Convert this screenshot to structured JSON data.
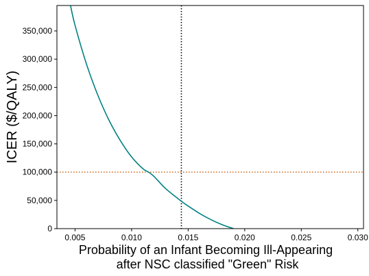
{
  "chart_data": {
    "type": "line",
    "title": "",
    "xlabel_lines": [
      "Probability of an Infant Becoming Ill-Appearing",
      "after NSC classified \"Green\" Risk"
    ],
    "ylabel": "ICER ($/QALY)",
    "xlim": [
      0.0034,
      0.0305
    ],
    "ylim": [
      0,
      395000
    ],
    "x_ticks": [
      {
        "value": 0.005,
        "label": "0.005"
      },
      {
        "value": 0.01,
        "label": "0.010"
      },
      {
        "value": 0.015,
        "label": "0.015"
      },
      {
        "value": 0.02,
        "label": "0.020"
      },
      {
        "value": 0.025,
        "label": "0.025"
      },
      {
        "value": 0.03,
        "label": "0.030"
      }
    ],
    "y_ticks": [
      {
        "value": 0,
        "label": "0"
      },
      {
        "value": 50000,
        "label": "50,000"
      },
      {
        "value": 100000,
        "label": "100,000"
      },
      {
        "value": 150000,
        "label": "150,000"
      },
      {
        "value": 200000,
        "label": "200,000"
      },
      {
        "value": 250000,
        "label": "250,000"
      },
      {
        "value": 300000,
        "label": "300,000"
      },
      {
        "value": 350000,
        "label": "350,000"
      }
    ],
    "grid": false,
    "legend": false,
    "series": [
      {
        "color": "#008080",
        "x": [
          0.0046,
          0.005,
          0.006,
          0.007,
          0.008,
          0.009,
          0.01,
          0.011,
          0.0115,
          0.012,
          0.013,
          0.0143,
          0.015,
          0.016,
          0.017,
          0.018,
          0.019
        ],
        "y": [
          395000,
          360000,
          292000,
          237000,
          192000,
          156000,
          127000,
          106000,
          100000,
          92000,
          71000,
          50000,
          40000,
          27000,
          16000,
          7000,
          0
        ]
      }
    ],
    "reference_lines": [
      {
        "orientation": "vertical",
        "value": 0.0144,
        "color": "#000000",
        "style": "dotted"
      },
      {
        "orientation": "horizontal",
        "value": 100000,
        "color": "#d2691e",
        "style": "dotted"
      }
    ]
  }
}
